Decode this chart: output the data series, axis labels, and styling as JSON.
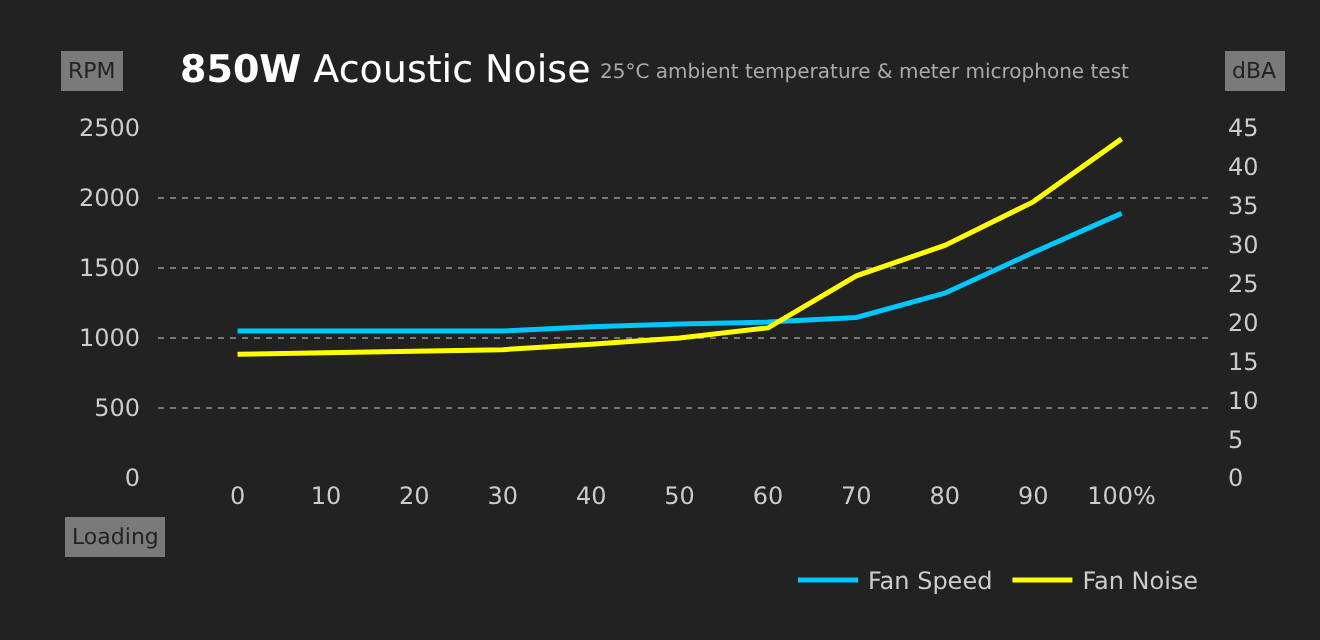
{
  "chart_data": {
    "type": "line",
    "title": "850W Acoustic Noise",
    "subtitle": "25°C ambient temperature & meter microphone test",
    "xlabel": "Loading",
    "ylabel": "RPM",
    "y2label": "dBA",
    "x": [
      0,
      10,
      20,
      30,
      40,
      50,
      60,
      70,
      80,
      90,
      100
    ],
    "series": [
      {
        "name": "Fan Speed",
        "color": "#00c8ff",
        "values": [
          1050,
          1050,
          1050,
          1050,
          1080,
          1100,
          1114,
          1147,
          1320,
          1610,
          1890
        ]
      },
      {
        "name": "Fan Noise",
        "color": "#ffff00",
        "axis": "y2",
        "values": [
          15.9,
          16.1,
          16.3,
          16.5,
          17.2,
          18,
          19.3,
          26,
          29.9,
          35.5,
          43.6
        ]
      }
    ],
    "xlim": [
      -9,
      110
    ],
    "xticks": [
      0,
      10,
      20,
      30,
      40,
      50,
      60,
      70,
      80,
      90,
      {
        "value": 100,
        "label": "100%"
      }
    ],
    "ylim": [
      0,
      2500
    ],
    "yticks": [
      0,
      500,
      1000,
      1500,
      2000,
      2500
    ],
    "y2lim": [
      0,
      45
    ],
    "y2ticks": [
      0,
      5,
      10,
      15,
      20,
      25,
      30,
      35,
      40,
      45
    ],
    "grid": "y",
    "legend": "bottom right",
    "marker": "none",
    "line_style": "solid"
  }
}
